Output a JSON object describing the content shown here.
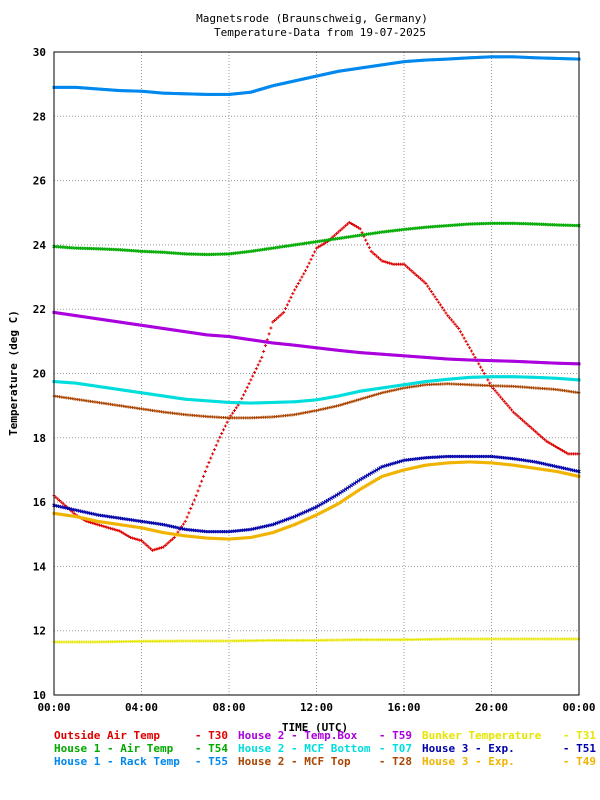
{
  "chart_data": {
    "type": "scatter",
    "title": "Magnetsrode (Braunschweig, Germany)",
    "subtitle": "Temperature-Data from 19-07-2025",
    "xlabel": "TIME (UTC)",
    "ylabel": "Temperature (deg C)",
    "xlim": [
      0,
      24
    ],
    "ylim": [
      10,
      30
    ],
    "x_unit": "hours",
    "x_ticks": [
      "00:00",
      "04:00",
      "08:00",
      "12:00",
      "16:00",
      "20:00",
      "00:00"
    ],
    "y_ticks": [
      "10",
      "12",
      "14",
      "16",
      "18",
      "20",
      "22",
      "24",
      "26",
      "28",
      "30"
    ],
    "grid": true,
    "legend_position": "bottom",
    "series": [
      {
        "name": "Outside Air Temp",
        "code": "T30",
        "color": "#dd0000",
        "marker": "plus",
        "x": [
          0,
          0.5,
          1,
          1.5,
          2,
          2.5,
          3,
          3.5,
          4,
          4.5,
          5,
          5.5,
          6,
          6.5,
          7,
          7.5,
          8,
          8.5,
          9,
          9.5,
          10,
          10.5,
          11,
          11.5,
          12,
          12.5,
          13,
          13.5,
          14,
          14.5,
          15,
          15.5,
          16,
          16.5,
          17,
          17.5,
          18,
          18.5,
          19,
          19.5,
          20,
          20.5,
          21,
          21.5,
          22,
          22.5,
          23,
          23.5,
          24
        ],
        "y": [
          16.2,
          15.9,
          15.6,
          15.4,
          15.3,
          15.2,
          15.1,
          14.9,
          14.8,
          14.5,
          14.6,
          14.9,
          15.4,
          16.2,
          17.1,
          17.9,
          18.6,
          19.1,
          19.8,
          20.5,
          21.6,
          21.9,
          22.6,
          23.2,
          23.9,
          24.1,
          24.4,
          24.7,
          24.5,
          23.8,
          23.5,
          23.4,
          23.4,
          23.1,
          22.8,
          22.3,
          21.8,
          21.4,
          20.8,
          20.2,
          19.6,
          19.2,
          18.8,
          18.5,
          18.2,
          17.9,
          17.7,
          17.5,
          17.5
        ]
      },
      {
        "name": "House 1 - Air  Temp",
        "code": "T54",
        "color": "#00aa00",
        "marker": "x",
        "x": [
          0,
          1,
          2,
          3,
          4,
          5,
          6,
          7,
          8,
          9,
          10,
          11,
          12,
          13,
          14,
          15,
          16,
          17,
          18,
          19,
          20,
          21,
          22,
          23,
          24
        ],
        "y": [
          23.95,
          23.9,
          23.88,
          23.85,
          23.8,
          23.77,
          23.72,
          23.7,
          23.72,
          23.8,
          23.9,
          24.0,
          24.1,
          24.2,
          24.3,
          24.4,
          24.48,
          24.55,
          24.6,
          24.65,
          24.67,
          24.67,
          24.65,
          24.62,
          24.6
        ]
      },
      {
        "name": "House 1 - Rack Temp",
        "code": "T55",
        "color": "#0088ee",
        "marker": "square",
        "x": [
          0,
          1,
          2,
          3,
          4,
          5,
          6,
          7,
          8,
          9,
          10,
          11,
          12,
          13,
          14,
          15,
          16,
          17,
          18,
          19,
          20,
          21,
          22,
          23,
          24
        ],
        "y": [
          28.9,
          28.9,
          28.85,
          28.8,
          28.78,
          28.72,
          28.7,
          28.68,
          28.68,
          28.75,
          28.95,
          29.1,
          29.25,
          29.4,
          29.5,
          29.6,
          29.7,
          29.75,
          29.78,
          29.82,
          29.85,
          29.85,
          29.82,
          29.8,
          29.78
        ]
      },
      {
        "name": "House 2 - Temp.Box",
        "code": "T59",
        "color": "#aa00dd",
        "marker": "square",
        "x": [
          0,
          1,
          2,
          3,
          4,
          5,
          6,
          7,
          8,
          9,
          10,
          11,
          12,
          13,
          14,
          15,
          16,
          17,
          18,
          19,
          20,
          21,
          22,
          23,
          24
        ],
        "y": [
          21.9,
          21.8,
          21.7,
          21.6,
          21.5,
          21.4,
          21.3,
          21.2,
          21.15,
          21.05,
          20.95,
          20.88,
          20.8,
          20.72,
          20.65,
          20.6,
          20.55,
          20.5,
          20.45,
          20.42,
          20.4,
          20.38,
          20.35,
          20.32,
          20.3
        ]
      },
      {
        "name": "House 2 - MCF Bottom",
        "code": "T07",
        "color": "#00dddd",
        "marker": "square",
        "x": [
          0,
          1,
          2,
          3,
          4,
          5,
          6,
          7,
          8,
          9,
          10,
          11,
          12,
          13,
          14,
          15,
          16,
          17,
          18,
          19,
          20,
          21,
          22,
          23,
          24
        ],
        "y": [
          19.75,
          19.7,
          19.6,
          19.5,
          19.4,
          19.3,
          19.2,
          19.15,
          19.1,
          19.08,
          19.1,
          19.12,
          19.18,
          19.3,
          19.45,
          19.55,
          19.65,
          19.75,
          19.82,
          19.88,
          19.9,
          19.9,
          19.88,
          19.85,
          19.8
        ]
      },
      {
        "name": "House 2 - MCF Top",
        "code": "T28",
        "color": "#aa4400",
        "marker": "plus",
        "x": [
          0,
          1,
          2,
          3,
          4,
          5,
          6,
          7,
          8,
          9,
          10,
          11,
          12,
          13,
          14,
          15,
          16,
          17,
          18,
          19,
          20,
          21,
          22,
          23,
          24
        ],
        "y": [
          19.3,
          19.2,
          19.1,
          19.0,
          18.9,
          18.8,
          18.72,
          18.66,
          18.62,
          18.62,
          18.65,
          18.72,
          18.85,
          19.0,
          19.2,
          19.4,
          19.55,
          19.65,
          19.68,
          19.65,
          19.62,
          19.6,
          19.55,
          19.5,
          19.4
        ]
      },
      {
        "name": "Bunker Temperature",
        "code": "T31",
        "color": "#e6e600",
        "marker": "plus",
        "x": [
          0,
          2,
          4,
          6,
          8,
          10,
          12,
          14,
          16,
          18,
          20,
          22,
          24
        ],
        "y": [
          11.65,
          11.65,
          11.67,
          11.68,
          11.68,
          11.7,
          11.7,
          11.72,
          11.72,
          11.74,
          11.74,
          11.74,
          11.74
        ]
      },
      {
        "name": "House 3 - Exp.",
        "code": "T51",
        "color": "#0000aa",
        "marker": "x",
        "x": [
          0,
          1,
          2,
          3,
          4,
          5,
          6,
          7,
          8,
          9,
          10,
          11,
          12,
          13,
          14,
          15,
          16,
          17,
          18,
          19,
          20,
          21,
          22,
          23,
          24
        ],
        "y": [
          15.9,
          15.75,
          15.6,
          15.5,
          15.4,
          15.3,
          15.15,
          15.08,
          15.08,
          15.15,
          15.3,
          15.55,
          15.85,
          16.25,
          16.7,
          17.1,
          17.3,
          17.38,
          17.42,
          17.42,
          17.42,
          17.35,
          17.25,
          17.1,
          16.95
        ]
      },
      {
        "name": "House 3 - Exp.",
        "code": "T49",
        "color": "#f0b400",
        "marker": "square",
        "x": [
          0,
          1,
          2,
          3,
          4,
          5,
          6,
          7,
          8,
          9,
          10,
          11,
          12,
          13,
          14,
          15,
          16,
          17,
          18,
          19,
          20,
          21,
          22,
          23,
          24
        ],
        "y": [
          15.65,
          15.55,
          15.4,
          15.3,
          15.2,
          15.05,
          14.95,
          14.88,
          14.85,
          14.9,
          15.05,
          15.3,
          15.6,
          15.95,
          16.4,
          16.8,
          17.0,
          17.15,
          17.22,
          17.25,
          17.22,
          17.15,
          17.05,
          16.95,
          16.8
        ]
      }
    ],
    "legend": [
      {
        "label": "Outside Air Temp",
        "code": "- T30",
        "color": "#dd0000"
      },
      {
        "label": "House 2 - Temp.Box",
        "code": "- T59",
        "color": "#aa00dd"
      },
      {
        "label": "Bunker Temperature",
        "code": "- T31",
        "color": "#e6e600"
      },
      {
        "label": "House 1 - Air  Temp",
        "code": "- T54",
        "color": "#00aa00"
      },
      {
        "label": "House 2 - MCF Bottom",
        "code": "- T07",
        "color": "#00dddd"
      },
      {
        "label": "House 3 - Exp.",
        "code": "- T51",
        "color": "#0000aa"
      },
      {
        "label": "House 1 - Rack Temp",
        "code": "- T55",
        "color": "#0088ee"
      },
      {
        "label": "House 2 - MCF Top",
        "code": "- T28",
        "color": "#aa4400"
      },
      {
        "label": "House 3 - Exp.",
        "code": "- T49",
        "color": "#f0b400"
      }
    ]
  }
}
